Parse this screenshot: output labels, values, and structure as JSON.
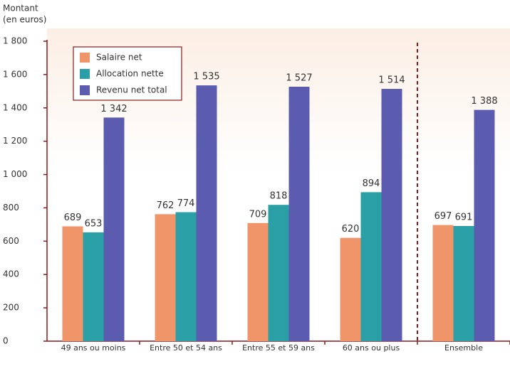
{
  "chart_data": {
    "type": "bar",
    "y_label": [
      "Montant",
      "(en euros)"
    ],
    "categories": [
      "49 ans ou moins",
      "Entre 50 et 54 ans",
      "Entre 55 et 59 ans",
      "60 ans ou plus",
      "Ensemble"
    ],
    "series": [
      {
        "name": "Salaire net",
        "color": "#f0956a",
        "values": [
          689,
          762,
          709,
          620,
          697
        ]
      },
      {
        "name": "Allocation nette",
        "color": "#2a9fa6",
        "values": [
          653,
          774,
          818,
          894,
          691
        ]
      },
      {
        "name": "Revenu net total",
        "color": "#5b5bb0",
        "values": [
          1342,
          1535,
          1527,
          1514,
          1388
        ],
        "value_labels": [
          "1 342",
          "1 535",
          "1 527",
          "1 514",
          "1 388"
        ]
      }
    ],
    "ylim": [
      0,
      1800
    ],
    "yticks": [
      0,
      200,
      400,
      600,
      800,
      {
        "value": 1000,
        "label": "1 000"
      },
      {
        "value": 1200,
        "label": "1 200"
      },
      {
        "value": 1400,
        "label": "1 400"
      },
      {
        "value": 1600,
        "label": "1 600"
      },
      {
        "value": 1800,
        "label": "1 800"
      }
    ],
    "legend": "top-left"
  }
}
